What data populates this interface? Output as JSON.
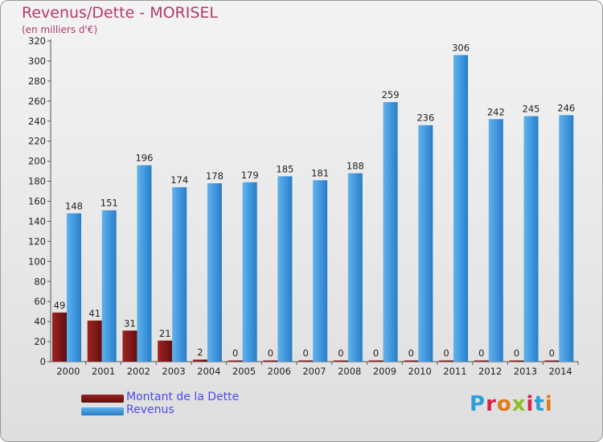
{
  "title": "Revenus/Dette - MORISEL",
  "subtitle": "(en milliers d'€)",
  "colors": {
    "debt": "#7d1717",
    "revenue": "#3d94db",
    "title": "#b03a6f",
    "legend_text": "#4a4aee"
  },
  "legend": {
    "debt_label": "Montant de la Dette",
    "revenue_label": "Revenus"
  },
  "logo_text": "Proxiti",
  "chart_data": {
    "type": "bar",
    "title": "Revenus/Dette - MORISEL",
    "subtitle": "(en milliers d'€)",
    "categories": [
      "2000",
      "2001",
      "2002",
      "2003",
      "2004",
      "2005",
      "2006",
      "2007",
      "2008",
      "2009",
      "2010",
      "2011",
      "2012",
      "2013",
      "2014"
    ],
    "series": [
      {
        "name": "Montant de la Dette",
        "values": [
          49,
          41,
          31,
          21,
          2,
          0,
          0,
          0,
          0,
          0,
          0,
          0,
          0,
          0,
          0
        ]
      },
      {
        "name": "Revenus",
        "values": [
          148,
          151,
          196,
          174,
          178,
          179,
          185,
          181,
          188,
          259,
          236,
          306,
          242,
          245,
          246
        ]
      }
    ],
    "ylim": [
      0,
      320
    ],
    "yticks": [
      0,
      20,
      40,
      60,
      80,
      100,
      120,
      140,
      160,
      180,
      200,
      220,
      240,
      260,
      280,
      300,
      320
    ],
    "grid": false,
    "legend_position": "bottom-left"
  }
}
